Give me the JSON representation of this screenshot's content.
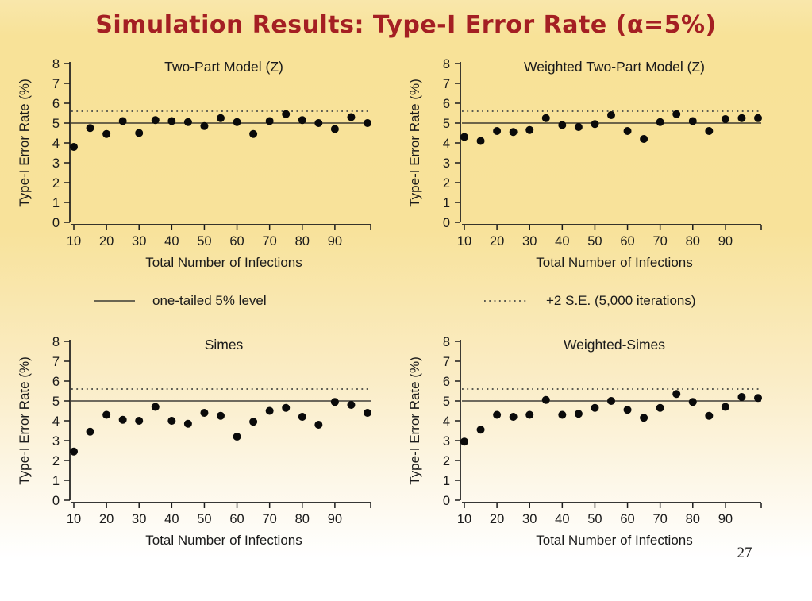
{
  "slide": {
    "title": "Simulation Results: Type-I Error Rate (α=5%)",
    "page_number": "27",
    "title_color": "#a41f23",
    "background_top_color": "#f8e298",
    "background_bottom_color": "#ffffff"
  },
  "legend": {
    "solid_label": "one-tailed 5% level",
    "dotted_label": "+2 S.E. (5,000 iterations)"
  },
  "style": {
    "marker_color": "#0a0a0a",
    "axis_color": "#1a1a1a",
    "solid_line_color": "#1a1a1a",
    "dotted_line_color": "#5a5a50"
  },
  "chart_data": [
    {
      "type": "scatter",
      "title": "Two-Part Model (Z)",
      "xlabel": "Total Number of Infections",
      "ylabel": "Type-I Error Rate (%)",
      "xlim": [
        10,
        100
      ],
      "ylim": [
        0,
        8
      ],
      "xticks": [
        10,
        20,
        30,
        40,
        50,
        60,
        70,
        80,
        90
      ],
      "yticks": [
        0,
        1,
        2,
        3,
        4,
        5,
        6,
        7,
        8
      ],
      "grid": false,
      "reference_lines": [
        {
          "y": 5.0,
          "style": "solid",
          "label": "one-tailed 5% level"
        },
        {
          "y": 5.6,
          "style": "dotted",
          "label": "+2 S.E. (5,000 iterations)"
        }
      ],
      "x": [
        10,
        15,
        20,
        25,
        30,
        35,
        40,
        45,
        50,
        55,
        60,
        65,
        70,
        75,
        80,
        85,
        90,
        95,
        100
      ],
      "y": [
        3.8,
        4.75,
        4.45,
        5.1,
        4.5,
        5.15,
        5.1,
        5.05,
        4.85,
        5.25,
        5.05,
        4.45,
        5.1,
        5.45,
        5.15,
        5.0,
        4.7,
        5.3,
        5.0
      ]
    },
    {
      "type": "scatter",
      "title": "Weighted Two-Part Model (Z)",
      "xlabel": "Total Number of Infections",
      "ylabel": "Type-I Error Rate (%)",
      "xlim": [
        10,
        100
      ],
      "ylim": [
        0,
        8
      ],
      "xticks": [
        10,
        20,
        30,
        40,
        50,
        60,
        70,
        80,
        90
      ],
      "yticks": [
        0,
        1,
        2,
        3,
        4,
        5,
        6,
        7,
        8
      ],
      "grid": false,
      "reference_lines": [
        {
          "y": 5.0,
          "style": "solid",
          "label": "one-tailed 5% level"
        },
        {
          "y": 5.6,
          "style": "dotted",
          "label": "+2 S.E. (5,000 iterations)"
        }
      ],
      "x": [
        10,
        15,
        20,
        25,
        30,
        35,
        40,
        45,
        50,
        55,
        60,
        65,
        70,
        75,
        80,
        85,
        90,
        95,
        100
      ],
      "y": [
        4.3,
        4.1,
        4.6,
        4.55,
        4.65,
        5.25,
        4.9,
        4.8,
        4.95,
        5.4,
        4.6,
        4.2,
        5.05,
        5.45,
        5.1,
        4.6,
        5.2,
        5.25,
        5.25
      ]
    },
    {
      "type": "scatter",
      "title": "Simes",
      "xlabel": "Total Number of Infections",
      "ylabel": "Type-I Error Rate (%)",
      "xlim": [
        10,
        100
      ],
      "ylim": [
        0,
        8
      ],
      "xticks": [
        10,
        20,
        30,
        40,
        50,
        60,
        70,
        80,
        90
      ],
      "yticks": [
        0,
        1,
        2,
        3,
        4,
        5,
        6,
        7,
        8
      ],
      "grid": false,
      "reference_lines": [
        {
          "y": 5.0,
          "style": "solid",
          "label": "one-tailed 5% level"
        },
        {
          "y": 5.6,
          "style": "dotted",
          "label": "+2 S.E. (5,000 iterations)"
        }
      ],
      "x": [
        10,
        15,
        20,
        25,
        30,
        35,
        40,
        45,
        50,
        55,
        60,
        65,
        70,
        75,
        80,
        85,
        90,
        95,
        100
      ],
      "y": [
        2.45,
        3.45,
        4.3,
        4.05,
        4.0,
        4.7,
        4.0,
        3.85,
        4.4,
        4.25,
        3.2,
        3.95,
        4.5,
        4.65,
        4.2,
        3.8,
        4.95,
        4.8,
        4.4
      ]
    },
    {
      "type": "scatter",
      "title": "Weighted-Simes",
      "xlabel": "Total Number of Infections",
      "ylabel": "Type-I Error Rate (%)",
      "xlim": [
        10,
        100
      ],
      "ylim": [
        0,
        8
      ],
      "xticks": [
        10,
        20,
        30,
        40,
        50,
        60,
        70,
        80,
        90
      ],
      "yticks": [
        0,
        1,
        2,
        3,
        4,
        5,
        6,
        7,
        8
      ],
      "grid": false,
      "reference_lines": [
        {
          "y": 5.0,
          "style": "solid",
          "label": "one-tailed 5% level"
        },
        {
          "y": 5.6,
          "style": "dotted",
          "label": "+2 S.E. (5,000 iterations)"
        }
      ],
      "x": [
        10,
        15,
        20,
        25,
        30,
        35,
        40,
        45,
        50,
        55,
        60,
        65,
        70,
        75,
        80,
        85,
        90,
        95,
        100
      ],
      "y": [
        2.95,
        3.55,
        4.3,
        4.2,
        4.3,
        5.05,
        4.3,
        4.35,
        4.65,
        5.0,
        4.55,
        4.15,
        4.65,
        5.35,
        4.95,
        4.25,
        4.7,
        5.2,
        5.15
      ]
    }
  ]
}
